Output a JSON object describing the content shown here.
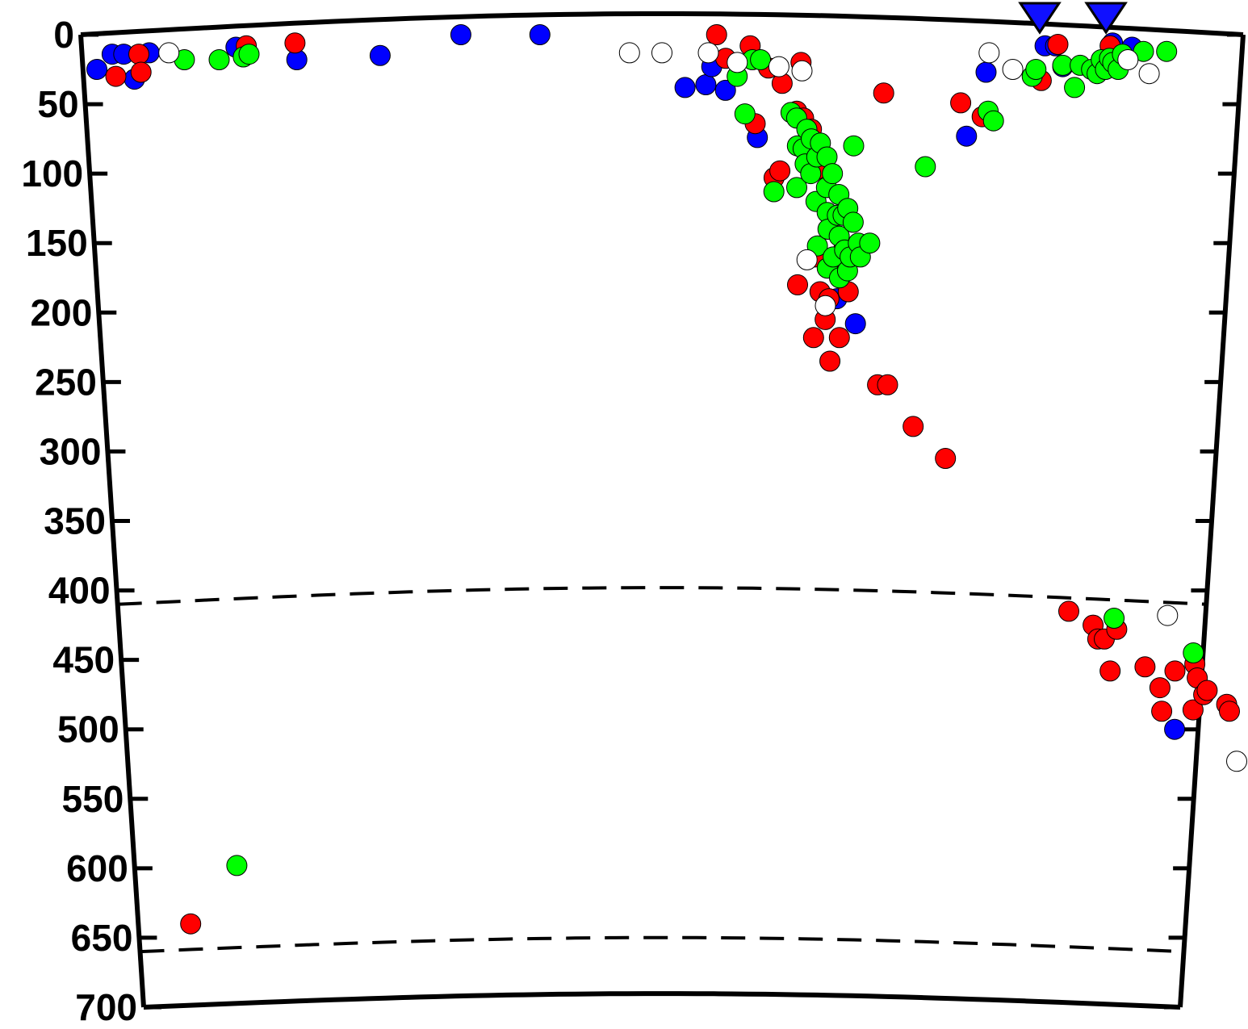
{
  "chart_data": {
    "type": "scatter",
    "title": "",
    "xlabel": "",
    "ylabel": "",
    "y_axis": {
      "range": [
        0,
        700
      ],
      "inverted": true,
      "ticks": [
        "0",
        "50",
        "100",
        "150",
        "200",
        "250",
        "300",
        "350",
        "400",
        "450",
        "500",
        "550",
        "600",
        "650",
        "700"
      ]
    },
    "x_axis": {
      "range": [
        0,
        100
      ],
      "ticks_labeled": false
    },
    "grid": false,
    "legend": "none",
    "reference_lines": [
      {
        "y": 410,
        "style": "dashed"
      },
      {
        "y": 660,
        "style": "dashed"
      }
    ],
    "stations": [
      {
        "x": 82.5,
        "color": "#1010ff"
      },
      {
        "x": 88.2,
        "color": "#1010ff"
      }
    ],
    "series": [
      {
        "color": "#0000ff",
        "points": [
          [
            1.2,
            25
          ],
          [
            2.6,
            14
          ],
          [
            3.6,
            14
          ],
          [
            4.4,
            32
          ],
          [
            5.8,
            13
          ],
          [
            13.3,
            9
          ],
          [
            18.5,
            18
          ],
          [
            25.7,
            15
          ],
          [
            32.7,
            0
          ],
          [
            39.5,
            0
          ],
          [
            52,
            38
          ],
          [
            53.8,
            36
          ],
          [
            54.3,
            23
          ],
          [
            55.5,
            40
          ],
          [
            58.3,
            74
          ],
          [
            65.5,
            190
          ],
          [
            67.2,
            208
          ],
          [
            76.5,
            73
          ],
          [
            78,
            27
          ],
          [
            83,
            8
          ],
          [
            83.9,
            8
          ],
          [
            84.6,
            23
          ],
          [
            88.8,
            6
          ],
          [
            90.5,
            9
          ],
          [
            97.8,
            500
          ]
        ]
      },
      {
        "color": "#ff0000",
        "points": [
          [
            2.8,
            30
          ],
          [
            4.9,
            14
          ],
          [
            5,
            27
          ],
          [
            14.2,
            8
          ],
          [
            18.4,
            6
          ],
          [
            54.7,
            0
          ],
          [
            55.5,
            17
          ],
          [
            57.6,
            8
          ],
          [
            59.2,
            24
          ],
          [
            60.4,
            35
          ],
          [
            58.1,
            64
          ],
          [
            59.8,
            103
          ],
          [
            60.3,
            98
          ],
          [
            61.7,
            55
          ],
          [
            62.3,
            60
          ],
          [
            63,
            68
          ],
          [
            63.5,
            97
          ],
          [
            62,
            180
          ],
          [
            63.5,
            160
          ],
          [
            64,
            185
          ],
          [
            63.5,
            218
          ],
          [
            64.5,
            205
          ],
          [
            64.8,
            190
          ],
          [
            65,
            235
          ],
          [
            65.8,
            218
          ],
          [
            66.3,
            170
          ],
          [
            66,
            155
          ],
          [
            66.5,
            185
          ],
          [
            69.2,
            42
          ],
          [
            69.3,
            252
          ],
          [
            70.2,
            252
          ],
          [
            72.6,
            282
          ],
          [
            75.6,
            305
          ],
          [
            75.9,
            49
          ],
          [
            77.8,
            59
          ],
          [
            62,
            20
          ],
          [
            82.8,
            33
          ],
          [
            84.1,
            7
          ],
          [
            88.6,
            8
          ],
          [
            87.4,
            415
          ],
          [
            89.7,
            425
          ],
          [
            90.2,
            435
          ],
          [
            90.8,
            435
          ],
          [
            91.5,
            458
          ],
          [
            91.9,
            428
          ],
          [
            94.7,
            455
          ],
          [
            96.2,
            470
          ],
          [
            96.5,
            487
          ],
          [
            97.5,
            458
          ],
          [
            99.3,
            453
          ],
          [
            99.4,
            486
          ],
          [
            99.6,
            463
          ],
          [
            100.3,
            475
          ],
          [
            100.6,
            472
          ],
          [
            102.5,
            482
          ],
          [
            102.8,
            487
          ],
          [
            5,
            640
          ]
        ]
      },
      {
        "color": "#00ff00",
        "points": [
          [
            8.8,
            18
          ],
          [
            11.8,
            18
          ],
          [
            13.9,
            16
          ],
          [
            14.4,
            14
          ],
          [
            56.5,
            30
          ],
          [
            57.2,
            57
          ],
          [
            57.8,
            18
          ],
          [
            58.5,
            18
          ],
          [
            59.8,
            113
          ],
          [
            61.2,
            56
          ],
          [
            61.7,
            60
          ],
          [
            61.8,
            80
          ],
          [
            61.8,
            110
          ],
          [
            62.3,
            82
          ],
          [
            62.5,
            93
          ],
          [
            62.6,
            68
          ],
          [
            63,
            75
          ],
          [
            63,
            100
          ],
          [
            63.5,
            88
          ],
          [
            63.8,
            78
          ],
          [
            63.5,
            120
          ],
          [
            63.7,
            152
          ],
          [
            64.4,
            88
          ],
          [
            64.4,
            110
          ],
          [
            64.5,
            128
          ],
          [
            64.6,
            140
          ],
          [
            64.6,
            168
          ],
          [
            64.9,
            100
          ],
          [
            65.1,
            160
          ],
          [
            65.4,
            130
          ],
          [
            65.5,
            115
          ],
          [
            65.6,
            145
          ],
          [
            65.7,
            175
          ],
          [
            65.9,
            130
          ],
          [
            66.1,
            155
          ],
          [
            66.3,
            125
          ],
          [
            66.4,
            170
          ],
          [
            66.6,
            160
          ],
          [
            66.8,
            135
          ],
          [
            67.3,
            150
          ],
          [
            67.5,
            160
          ],
          [
            66.7,
            80
          ],
          [
            68.3,
            150
          ],
          [
            73,
            95
          ],
          [
            78.3,
            55
          ],
          [
            78.8,
            62
          ],
          [
            82,
            30
          ],
          [
            82.3,
            25
          ],
          [
            84.6,
            22
          ],
          [
            85.7,
            38
          ],
          [
            86.1,
            22
          ],
          [
            87.1,
            25
          ],
          [
            87.6,
            28
          ],
          [
            87.9,
            18
          ],
          [
            88.3,
            25
          ],
          [
            88.6,
            17
          ],
          [
            88.9,
            20
          ],
          [
            89.4,
            25
          ],
          [
            89.7,
            14
          ],
          [
            91.5,
            12
          ],
          [
            91.6,
            420
          ],
          [
            93.5,
            12
          ],
          [
            99.1,
            445
          ],
          [
            9.7,
            598
          ]
        ]
      },
      {
        "color": "none",
        "points": [
          [
            7.5,
            13
          ],
          [
            47.2,
            13
          ],
          [
            50,
            13
          ],
          [
            54,
            13
          ],
          [
            56.5,
            20
          ],
          [
            60.1,
            23
          ],
          [
            62.1,
            26
          ],
          [
            62.8,
            162
          ],
          [
            64.5,
            195
          ],
          [
            78.2,
            13
          ],
          [
            80.3,
            25
          ],
          [
            90.2,
            18
          ],
          [
            92.1,
            28
          ],
          [
            96.5,
            418
          ],
          [
            103.8,
            523
          ]
        ]
      }
    ]
  }
}
